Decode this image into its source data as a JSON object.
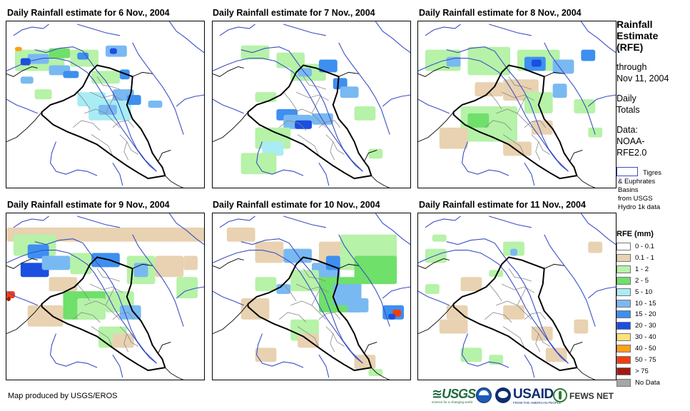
{
  "panels": [
    {
      "title": "Daily Rainfall estimate for 6 Nov., 2004"
    },
    {
      "title": "Daily Rainfall estimate for 7 Nov., 2004"
    },
    {
      "title": "Daily Rainfall estimate for 8 Nov., 2004"
    },
    {
      "title": "Daily Rainfall estimate for 9 Nov., 2004"
    },
    {
      "title": "Daily Rainfall estimate for 10 Nov., 2004"
    },
    {
      "title": "Daily Rainfall estimate for 11 Nov., 2004"
    }
  ],
  "sidebar": {
    "title_lines": [
      "Rainfall",
      "Estimate",
      "(RFE)"
    ],
    "through_lines": [
      "through",
      "Nov 11, 2004"
    ],
    "totals_lines": [
      "Daily",
      "Totals"
    ],
    "data_lines": [
      "Data:",
      "NOAA-",
      "RFE2.0"
    ],
    "basin_lines": [
      "Tigres",
      "& Euphrates",
      "Basins",
      "from USGS",
      "Hydro 1k data"
    ]
  },
  "legend": {
    "title": "RFE (mm)",
    "classes": [
      {
        "label": "0 - 0.1",
        "color": "#ffffff"
      },
      {
        "label": "0.1 - 1",
        "color": "#e8d2b1"
      },
      {
        "label": "1 - 2",
        "color": "#b6f2a8"
      },
      {
        "label": "2 - 5",
        "color": "#6fe06a"
      },
      {
        "label": "5 - 10",
        "color": "#a9ecf4"
      },
      {
        "label": "10 - 15",
        "color": "#79b9f2"
      },
      {
        "label": "15 - 20",
        "color": "#3d8ff0"
      },
      {
        "label": "20 - 30",
        "color": "#1a4fe0"
      },
      {
        "label": "30 - 40",
        "color": "#ffe07a"
      },
      {
        "label": "40 - 50",
        "color": "#ff9f1a"
      },
      {
        "label": "50 - 75",
        "color": "#f23e0f"
      },
      {
        "label": "> 75",
        "color": "#a01a10"
      },
      {
        "label": "No Data",
        "color": "#a6a6a6"
      }
    ]
  },
  "footer": {
    "credit": "Map produced by USGS/EROS",
    "logos": {
      "usgs": "≊USGS",
      "usgs_tagline": "science for a changing world",
      "usaid": "USAID",
      "usaid_tagline": "FROM THE AMERICAN PEOPLE",
      "fews": "FEWS NET"
    }
  },
  "map_colors": {
    "border": "#000000",
    "rivers": "#3a4fc4",
    "provinces": "#888888"
  }
}
